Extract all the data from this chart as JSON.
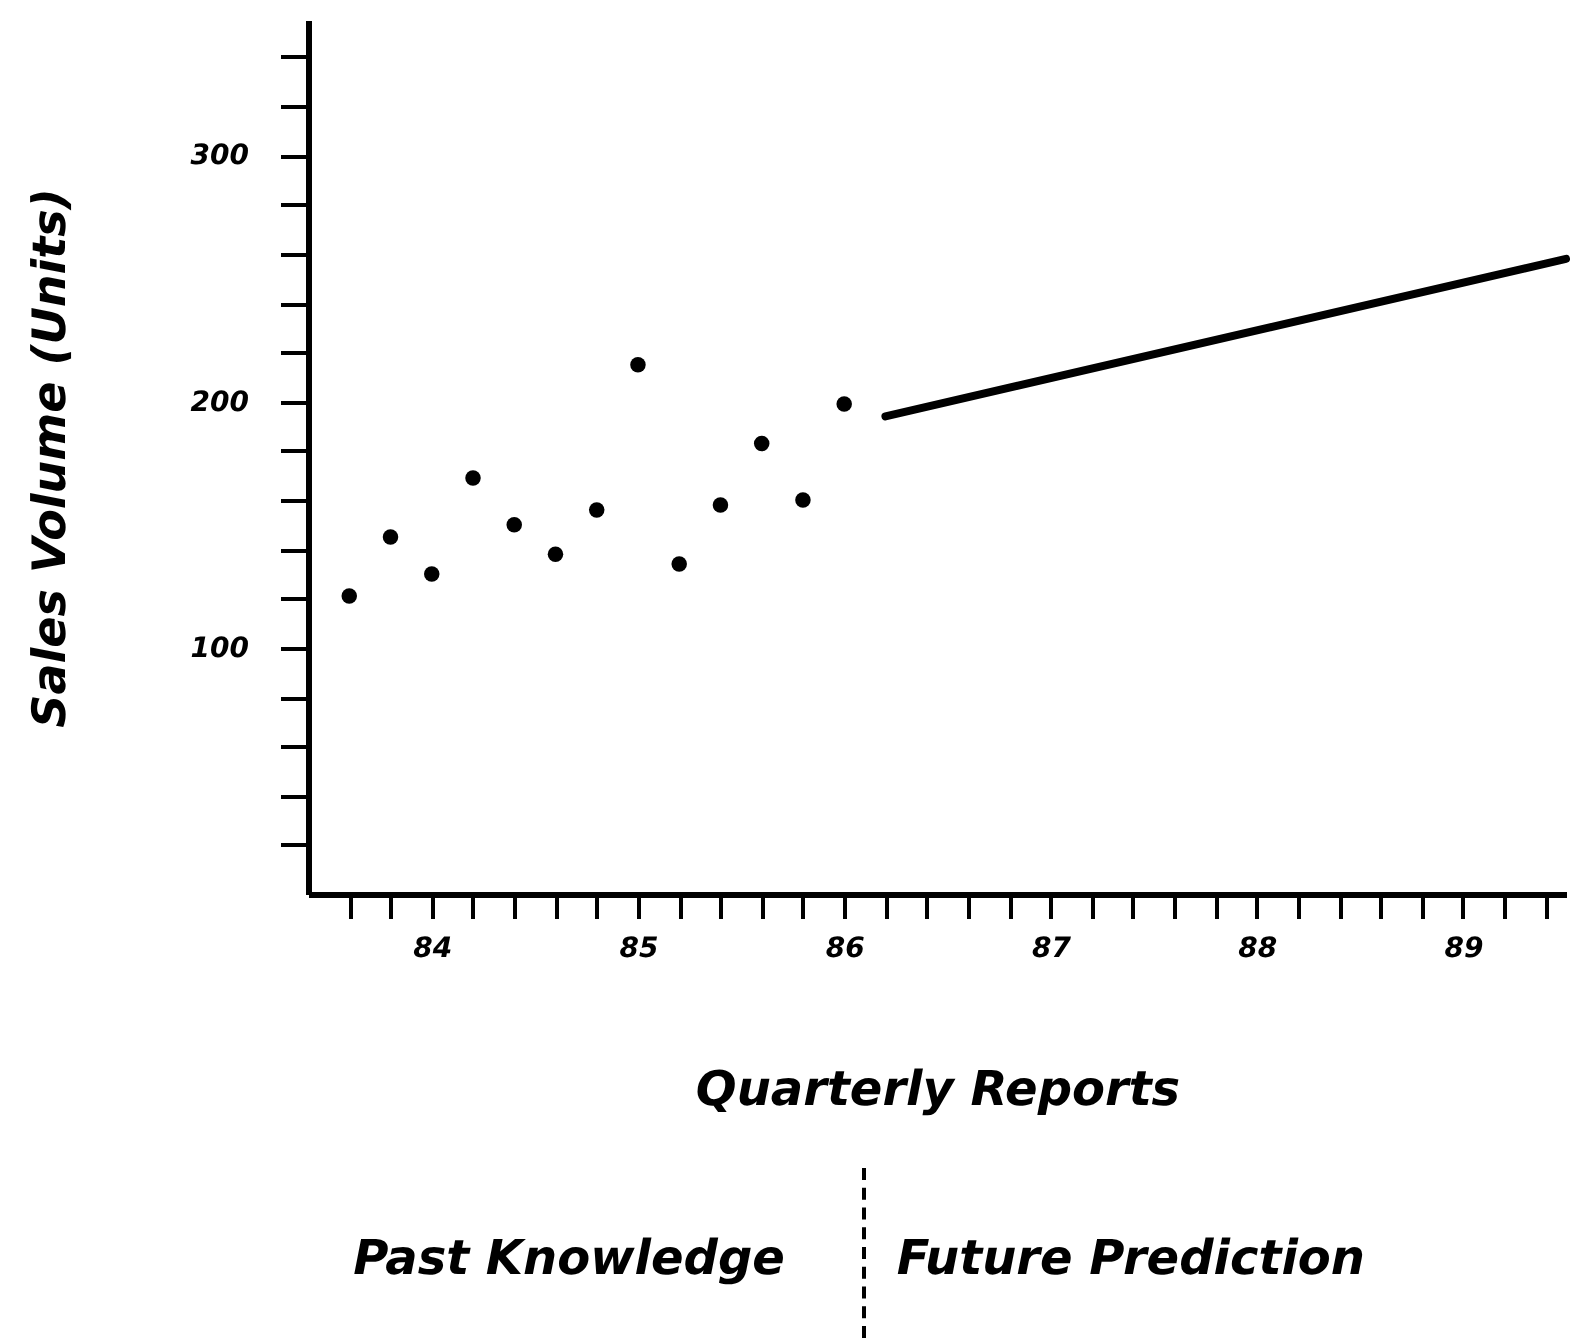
{
  "chart_data": {
    "type": "scatter",
    "xlabel": "Quarterly Reports",
    "ylabel": "Sales Volume (Units)",
    "annotations": [
      "Past Knowledge",
      "Future Prediction"
    ],
    "marker": "circle",
    "series": [
      {
        "color": "#000000",
        "x": [
          83.6,
          83.8,
          84.0,
          84.2,
          84.4,
          84.6,
          84.8,
          85.0,
          85.2,
          85.4,
          85.6,
          85.8,
          86.0
        ],
        "values": [
          121,
          145,
          130,
          169,
          150,
          138,
          156,
          215,
          134,
          158,
          183,
          160,
          199
        ]
      },
      {
        "type": "line",
        "color": "#000000",
        "marker": "none",
        "x": [
          86.2,
          89.5
        ],
        "values": [
          194,
          258
        ]
      }
    ],
    "xlim": [
      83.4,
      89.5
    ],
    "xticks": [
      {
        "value": 83.6,
        "label": null
      },
      {
        "value": 83.8,
        "label": null
      },
      84,
      {
        "value": 84.2,
        "label": null
      },
      {
        "value": 84.4,
        "label": null
      },
      {
        "value": 84.6,
        "label": null
      },
      {
        "value": 84.8,
        "label": null
      },
      85,
      {
        "value": 85.2,
        "label": null
      },
      {
        "value": 85.4,
        "label": null
      },
      {
        "value": 85.6,
        "label": null
      },
      {
        "value": 85.8,
        "label": null
      },
      86,
      {
        "value": 86.2,
        "label": null
      },
      {
        "value": 86.4,
        "label": null
      },
      {
        "value": 86.6,
        "label": null
      },
      {
        "value": 86.8,
        "label": null
      },
      87,
      {
        "value": 87.2,
        "label": null
      },
      {
        "value": 87.4,
        "label": null
      },
      {
        "value": 87.6,
        "label": null
      },
      {
        "value": 87.8,
        "label": null
      },
      88,
      {
        "value": 88.2,
        "label": null
      },
      {
        "value": 88.4,
        "label": null
      },
      {
        "value": 88.6,
        "label": null
      },
      {
        "value": 88.8,
        "label": null
      },
      89,
      {
        "value": 89.2,
        "label": null
      },
      {
        "value": 89.4,
        "label": null
      }
    ],
    "ylim": [
      0,
      355
    ],
    "yticks": [
      {
        "value": 20,
        "label": null
      },
      {
        "value": 40,
        "label": null
      },
      {
        "value": 60,
        "label": null
      },
      {
        "value": 80,
        "label": null
      },
      100,
      {
        "value": 120,
        "label": null
      },
      {
        "value": 140,
        "label": null
      },
      {
        "value": 160,
        "label": null
      },
      {
        "value": 180,
        "label": null
      },
      200,
      {
        "value": 220,
        "label": null
      },
      {
        "value": 240,
        "label": null
      },
      {
        "value": 260,
        "label": null
      },
      {
        "value": 280,
        "label": null
      },
      300,
      {
        "value": 320,
        "label": null
      },
      {
        "value": 340,
        "label": null
      }
    ]
  }
}
